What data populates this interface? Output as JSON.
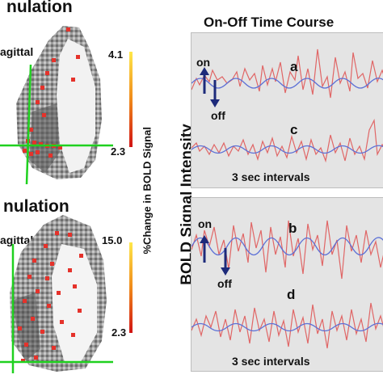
{
  "left": {
    "top_title": "nulation",
    "bottom_title": "nulation",
    "top_view": "agittal",
    "bottom_view": "agittal",
    "colorbar_label": "%Change in BOLD Signal",
    "top_scale": {
      "max": "4.1",
      "min": "2.3"
    },
    "bottom_scale": {
      "max": "15.0",
      "min": "2.3"
    }
  },
  "right": {
    "title": "On-Off Time Course",
    "y_axis_title": "BOLD Signal Intensity",
    "top_panel": {
      "on": "on",
      "off": "off",
      "trace_1": "a",
      "trace_2": "c",
      "interval": "3 sec intervals"
    },
    "bottom_panel": {
      "on": "on",
      "off": "off",
      "trace_1": "b",
      "trace_2": "d",
      "interval": "3 sec intervals"
    }
  },
  "colors": {
    "activation": "#e5322b",
    "crosshair": "#1fd11f",
    "signal": "#e06666",
    "model": "#5c70d6",
    "arrow": "#1d2a7a"
  }
}
